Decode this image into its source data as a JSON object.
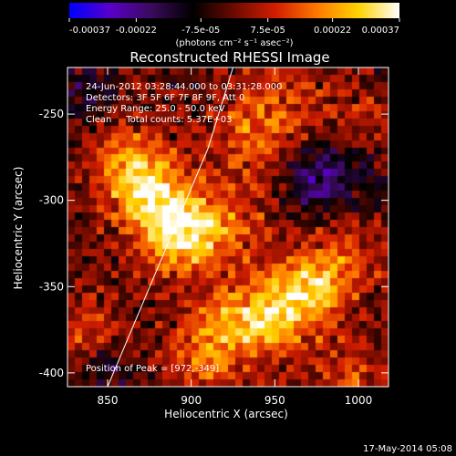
{
  "colorbar": {
    "tick_labels": [
      "-0.00037",
      "-0.00022",
      "-7.5e-05",
      "7.5e-05",
      "0.00022",
      "0.00037"
    ],
    "tick_values": [
      -0.00037,
      -0.00022,
      -7.5e-05,
      7.5e-05,
      0.00022,
      0.00037
    ],
    "range": [
      -0.00037,
      0.00037
    ],
    "unit_label": "(photons cm⁻² s⁻¹ asec⁻²)",
    "palette": [
      "#0000ff",
      "#5a00c8",
      "#3a0a5a",
      "#000000",
      "#6e0a00",
      "#d21e00",
      "#ff7800",
      "#ffd200",
      "#ffffff"
    ]
  },
  "chart_data": {
    "type": "heatmap",
    "title": "Reconstructed RHESSI Image",
    "xlabel": "Heliocentric X (arcsec)",
    "ylabel": "Heliocentric Y (arcsec)",
    "xlim": [
      826,
      1018
    ],
    "ylim": [
      -408,
      -223
    ],
    "x_ticks": [
      850,
      900,
      950,
      1000
    ],
    "y_ticks": [
      -250,
      -300,
      -350,
      -400
    ],
    "annotations": [
      "24-Jun-2012 03:28:44.000 to 03:31:28.000",
      "Detectors: 3F 5F 6F 7F 8F 9F, Att 0",
      "Energy Range: 25.0 - 50.0 keV",
      "Clean     Total counts: 5.37E+03"
    ],
    "peak_label": "Position of Peak = [972,-349]",
    "peak": [
      972,
      -349
    ],
    "limb_line": [
      [
        850,
        -408
      ],
      [
        910,
        -270
      ],
      [
        925,
        -223
      ]
    ],
    "sources": [
      {
        "x": 895,
        "y": -320,
        "amp": 1.0
      },
      {
        "x": 862,
        "y": -282,
        "amp": 0.75
      },
      {
        "x": 880,
        "y": -300,
        "amp": 0.7
      },
      {
        "x": 972,
        "y": -349,
        "amp": 0.9
      },
      {
        "x": 948,
        "y": -368,
        "amp": 0.8
      },
      {
        "x": 918,
        "y": -372,
        "amp": 0.6
      },
      {
        "x": 935,
        "y": -262,
        "amp": 0.55
      },
      {
        "x": 960,
        "y": -240,
        "amp": 0.35
      },
      {
        "x": 995,
        "y": -410,
        "amp": 0.45
      },
      {
        "x": 1005,
        "y": -258,
        "amp": 0.35
      },
      {
        "x": 1000,
        "y": -330,
        "amp": 0.3
      },
      {
        "x": 840,
        "y": -378,
        "amp": 0.4
      },
      {
        "x": 905,
        "y": -395,
        "amp": 0.4
      },
      {
        "x": 925,
        "y": -310,
        "amp": 0.45
      }
    ],
    "negative_sources": [
      {
        "x": 975,
        "y": -290,
        "amp": 0.6
      },
      {
        "x": 1000,
        "y": -280,
        "amp": 0.45
      },
      {
        "x": 850,
        "y": -395,
        "amp": 0.4
      },
      {
        "x": 835,
        "y": -238,
        "amp": 0.35
      }
    ]
  },
  "footer": {
    "timestamp": "17-May-2014 05:08"
  }
}
